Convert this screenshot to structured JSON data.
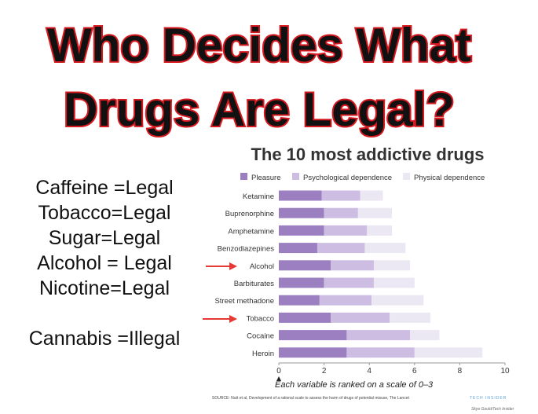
{
  "header": {
    "title_lines": [
      "Who Decides What",
      "Drugs Are Legal?"
    ]
  },
  "legal_list": [
    "Caffeine =Legal",
    "Tobacco=Legal",
    "Sugar=Legal",
    "Alcohol = Legal",
    "Nicotine=Legal"
  ],
  "illegal_note": "Cannabis =Illegal",
  "chart_data": {
    "type": "stacked-bar-horizontal",
    "title": "The 10 most addictive drugs",
    "subtitle": "Each variable is ranked on a scale of 0–3",
    "source": "SOURCE: Nutt et al, Development of a rational scale to assess the harm of drugs of potential misuse, The Lancet",
    "brand": "TECH INSIDER",
    "credit": "Skye Gould/Tech Insider",
    "categories": [
      "Ketamine",
      "Buprenorphine",
      "Amphetamine",
      "Benzodiazepines",
      "Alcohol",
      "Barbiturates",
      "Street methadone",
      "Tobacco",
      "Cocaine",
      "Heroin"
    ],
    "series": [
      {
        "name": "Pleasure",
        "color": "#9b7fc0",
        "values": [
          1.9,
          2.0,
          2.0,
          1.7,
          2.3,
          2.0,
          1.8,
          2.3,
          3.0,
          3.0
        ]
      },
      {
        "name": "Psychological dependence",
        "color": "#cdbde3",
        "values": [
          1.7,
          1.5,
          1.9,
          2.1,
          1.9,
          2.2,
          2.3,
          2.6,
          2.8,
          3.0
        ]
      },
      {
        "name": "Physical dependence",
        "color": "#ece8f3",
        "values": [
          1.0,
          1.5,
          1.1,
          1.8,
          1.6,
          1.8,
          2.3,
          1.8,
          1.3,
          3.0
        ]
      }
    ],
    "xlim": [
      0,
      10
    ],
    "xticks": [
      0,
      2,
      4,
      6,
      8,
      10
    ],
    "grid": false
  }
}
